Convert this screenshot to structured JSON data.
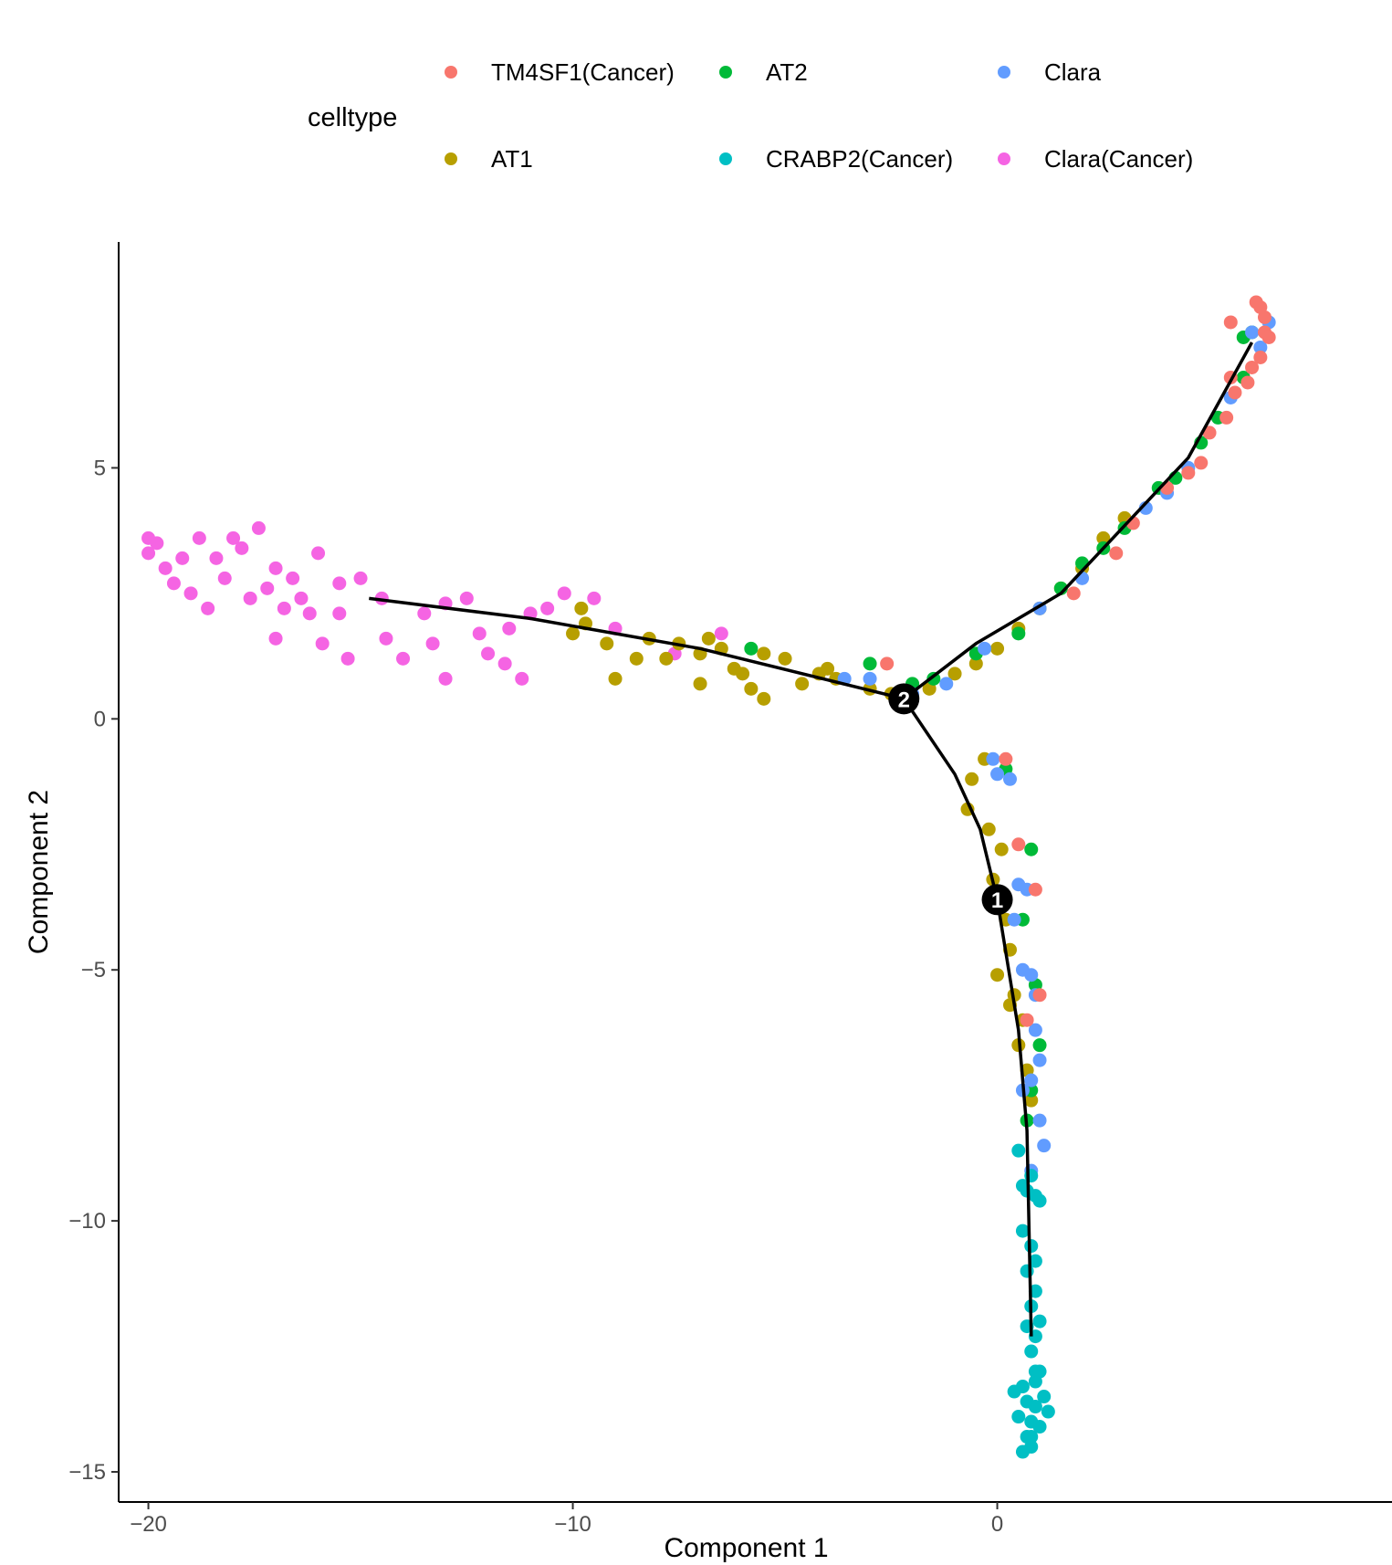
{
  "chart_data": {
    "type": "scatter",
    "xlabel": "Component 1",
    "ylabel": "Component 2",
    "xlim": [
      -20.7,
      9.3
    ],
    "ylim": [
      -15.6,
      9.5
    ],
    "xticks": [
      -20,
      -10,
      0
    ],
    "yticks": [
      5,
      0,
      -5,
      -10,
      -15
    ],
    "xtick_labels": [
      "−20",
      "−10",
      "0"
    ],
    "ytick_labels": [
      "5",
      "0",
      "−5",
      "−10",
      "−15"
    ],
    "grid": false,
    "legend": {
      "title": "celltype",
      "placement": "top",
      "entries": [
        {
          "name": "TM4SF1(Cancer)",
          "color": "#F8766D"
        },
        {
          "name": "AT2",
          "color": "#00BA38"
        },
        {
          "name": "Clara",
          "color": "#619CFF"
        },
        {
          "name": "AT1",
          "color": "#B79F00"
        },
        {
          "name": "CRABP2(Cancer)",
          "color": "#00BFC4"
        },
        {
          "name": "Clara(Cancer)",
          "color": "#F564E3"
        }
      ]
    },
    "trajectory": {
      "branch_points": [
        {
          "label": "1",
          "x": 0.0,
          "y": -3.6
        },
        {
          "label": "2",
          "x": -2.2,
          "y": 0.4
        }
      ],
      "segments": [
        [
          [
            -14.8,
            2.4
          ],
          [
            -11.0,
            2.0
          ],
          [
            -7.0,
            1.4
          ],
          [
            -2.2,
            0.4
          ]
        ],
        [
          [
            -2.2,
            0.4
          ],
          [
            -1.0,
            -1.1
          ],
          [
            -0.4,
            -2.2
          ],
          [
            0.0,
            -3.6
          ],
          [
            0.5,
            -6.2
          ],
          [
            0.7,
            -8.2
          ],
          [
            0.8,
            -12.3
          ]
        ],
        [
          [
            -2.2,
            0.4
          ],
          [
            -0.5,
            1.5
          ],
          [
            1.5,
            2.5
          ],
          [
            3.5,
            4.3
          ],
          [
            4.5,
            5.2
          ],
          [
            6.0,
            7.5
          ]
        ]
      ]
    },
    "series": [
      {
        "name": "Clara(Cancer)",
        "color": "#F564E3",
        "points": [
          [
            -20.0,
            3.6
          ],
          [
            -20.0,
            3.3
          ],
          [
            -19.8,
            3.5
          ],
          [
            -19.6,
            3.0
          ],
          [
            -19.4,
            2.7
          ],
          [
            -19.2,
            3.2
          ],
          [
            -19.0,
            2.5
          ],
          [
            -18.8,
            3.6
          ],
          [
            -18.6,
            2.2
          ],
          [
            -18.4,
            3.2
          ],
          [
            -18.2,
            2.8
          ],
          [
            -18.0,
            3.6
          ],
          [
            -17.8,
            3.4
          ],
          [
            -17.6,
            2.4
          ],
          [
            -17.4,
            3.8
          ],
          [
            -17.2,
            2.6
          ],
          [
            -17.0,
            3.0
          ],
          [
            -16.8,
            2.2
          ],
          [
            -16.6,
            2.8
          ],
          [
            -16.4,
            2.4
          ],
          [
            -16.2,
            2.1
          ],
          [
            -17.0,
            1.6
          ],
          [
            -16.0,
            3.3
          ],
          [
            -15.5,
            2.7
          ],
          [
            -15.5,
            2.1
          ],
          [
            -15.0,
            2.8
          ],
          [
            -14.5,
            2.4
          ],
          [
            -14.4,
            1.6
          ],
          [
            -14.0,
            1.2
          ],
          [
            -13.5,
            2.1
          ],
          [
            -13.3,
            1.5
          ],
          [
            -13.0,
            2.3
          ],
          [
            -13.0,
            0.8
          ],
          [
            -12.5,
            2.4
          ],
          [
            -12.2,
            1.7
          ],
          [
            -12.0,
            1.3
          ],
          [
            -11.6,
            1.1
          ],
          [
            -11.0,
            2.1
          ],
          [
            -11.2,
            0.8
          ],
          [
            -10.6,
            2.2
          ],
          [
            -10.2,
            2.5
          ],
          [
            -9.5,
            2.4
          ],
          [
            -9.0,
            1.8
          ],
          [
            -7.6,
            1.3
          ],
          [
            -6.5,
            1.7
          ],
          [
            -15.9,
            1.5
          ],
          [
            -15.3,
            1.2
          ],
          [
            -11.5,
            1.8
          ]
        ]
      },
      {
        "name": "AT1",
        "color": "#B79F00",
        "points": [
          [
            -10.0,
            1.7
          ],
          [
            -9.8,
            2.2
          ],
          [
            -9.7,
            1.9
          ],
          [
            -9.2,
            1.5
          ],
          [
            -9.0,
            0.8
          ],
          [
            -8.5,
            1.2
          ],
          [
            -8.2,
            1.6
          ],
          [
            -7.8,
            1.2
          ],
          [
            -7.5,
            1.5
          ],
          [
            -7.0,
            1.3
          ],
          [
            -6.8,
            1.6
          ],
          [
            -6.5,
            1.4
          ],
          [
            -6.2,
            1.0
          ],
          [
            -6.0,
            0.9
          ],
          [
            -5.8,
            0.6
          ],
          [
            -5.5,
            1.3
          ],
          [
            -5.0,
            1.2
          ],
          [
            -4.6,
            0.7
          ],
          [
            -4.2,
            0.9
          ],
          [
            -4.0,
            1.0
          ],
          [
            -3.8,
            0.8
          ],
          [
            -3.0,
            0.6
          ],
          [
            -2.5,
            0.5
          ],
          [
            -1.6,
            0.6
          ],
          [
            -1.0,
            0.9
          ],
          [
            -0.5,
            1.1
          ],
          [
            0.0,
            1.4
          ],
          [
            0.5,
            1.8
          ],
          [
            1.0,
            2.2
          ],
          [
            1.5,
            2.6
          ],
          [
            2.0,
            3.0
          ],
          [
            2.5,
            3.6
          ],
          [
            3.0,
            4.0
          ],
          [
            -0.3,
            -0.8
          ],
          [
            -0.6,
            -1.2
          ],
          [
            -0.7,
            -1.8
          ],
          [
            -0.2,
            -2.2
          ],
          [
            0.1,
            -2.6
          ],
          [
            -0.1,
            -3.2
          ],
          [
            0.2,
            -4.0
          ],
          [
            0.3,
            -4.6
          ],
          [
            0.0,
            -5.1
          ],
          [
            0.4,
            -5.5
          ],
          [
            0.6,
            -6.0
          ],
          [
            0.5,
            -6.5
          ],
          [
            0.7,
            -7.0
          ],
          [
            0.8,
            -7.6
          ],
          [
            0.3,
            -5.7
          ],
          [
            -7.0,
            0.7
          ],
          [
            -5.5,
            0.4
          ]
        ]
      },
      {
        "name": "AT2",
        "color": "#00BA38",
        "points": [
          [
            -5.8,
            1.4
          ],
          [
            -3.0,
            1.1
          ],
          [
            -2.0,
            0.7
          ],
          [
            -1.5,
            0.8
          ],
          [
            -0.5,
            1.3
          ],
          [
            0.5,
            1.7
          ],
          [
            1.5,
            2.6
          ],
          [
            2.0,
            3.1
          ],
          [
            2.5,
            3.4
          ],
          [
            3.0,
            3.8
          ],
          [
            3.8,
            4.6
          ],
          [
            4.2,
            4.8
          ],
          [
            4.8,
            5.5
          ],
          [
            5.2,
            6.0
          ],
          [
            5.8,
            6.8
          ],
          [
            6.0,
            7.7
          ],
          [
            5.8,
            7.6
          ],
          [
            0.2,
            -1.0
          ],
          [
            0.8,
            -2.6
          ],
          [
            0.6,
            -4.0
          ],
          [
            0.9,
            -5.3
          ],
          [
            1.0,
            -6.5
          ],
          [
            0.8,
            -7.4
          ],
          [
            0.7,
            -8.0
          ]
        ]
      },
      {
        "name": "Clara",
        "color": "#619CFF",
        "points": [
          [
            -3.6,
            0.8
          ],
          [
            -3.0,
            0.8
          ],
          [
            -2.0,
            0.5
          ],
          [
            -1.2,
            0.7
          ],
          [
            -0.3,
            1.4
          ],
          [
            1.0,
            2.2
          ],
          [
            2.0,
            2.8
          ],
          [
            3.5,
            4.2
          ],
          [
            4.0,
            4.5
          ],
          [
            4.5,
            5.0
          ],
          [
            5.5,
            6.4
          ],
          [
            6.0,
            7.7
          ],
          [
            6.2,
            7.4
          ],
          [
            6.4,
            7.9
          ],
          [
            -0.1,
            -0.8
          ],
          [
            0.0,
            -1.1
          ],
          [
            0.3,
            -1.2
          ],
          [
            0.5,
            -3.3
          ],
          [
            0.7,
            -3.4
          ],
          [
            0.4,
            -4.0
          ],
          [
            0.6,
            -5.0
          ],
          [
            0.8,
            -5.1
          ],
          [
            0.9,
            -5.5
          ],
          [
            0.9,
            -6.2
          ],
          [
            1.0,
            -6.8
          ],
          [
            0.8,
            -7.2
          ],
          [
            0.6,
            -7.4
          ],
          [
            1.0,
            -8.0
          ],
          [
            1.1,
            -8.5
          ],
          [
            0.8,
            -9.0
          ]
        ]
      },
      {
        "name": "TM4SF1(Cancer)",
        "color": "#F8766D",
        "points": [
          [
            -2.6,
            1.1
          ],
          [
            1.8,
            2.5
          ],
          [
            2.8,
            3.3
          ],
          [
            3.2,
            3.9
          ],
          [
            4.0,
            4.6
          ],
          [
            4.5,
            4.9
          ],
          [
            4.8,
            5.1
          ],
          [
            5.0,
            5.7
          ],
          [
            5.4,
            6.0
          ],
          [
            5.6,
            6.5
          ],
          [
            5.9,
            6.7
          ],
          [
            6.2,
            7.2
          ],
          [
            6.3,
            7.7
          ],
          [
            6.4,
            7.6
          ],
          [
            6.1,
            8.3
          ],
          [
            6.3,
            8.0
          ],
          [
            6.2,
            8.2
          ],
          [
            5.5,
            7.9
          ],
          [
            6.0,
            7.0
          ],
          [
            5.5,
            6.8
          ],
          [
            0.2,
            -0.8
          ],
          [
            0.5,
            -2.5
          ],
          [
            0.9,
            -3.4
          ],
          [
            0.7,
            -6.0
          ],
          [
            1.0,
            -5.5
          ]
        ]
      },
      {
        "name": "CRABP2(Cancer)",
        "color": "#00BFC4",
        "points": [
          [
            0.5,
            -8.6
          ],
          [
            0.7,
            -9.4
          ],
          [
            0.9,
            -9.5
          ],
          [
            1.0,
            -9.6
          ],
          [
            0.6,
            -10.2
          ],
          [
            0.8,
            -10.5
          ],
          [
            0.7,
            -11.0
          ],
          [
            0.9,
            -11.4
          ],
          [
            0.8,
            -11.7
          ],
          [
            1.0,
            -12.0
          ],
          [
            0.9,
            -12.3
          ],
          [
            0.8,
            -12.6
          ],
          [
            0.9,
            -13.0
          ],
          [
            0.6,
            -13.3
          ],
          [
            0.7,
            -13.6
          ],
          [
            0.9,
            -13.7
          ],
          [
            0.8,
            -14.0
          ],
          [
            1.0,
            -14.1
          ],
          [
            0.7,
            -14.3
          ],
          [
            0.8,
            -14.5
          ],
          [
            0.5,
            -13.9
          ],
          [
            1.1,
            -13.5
          ],
          [
            0.6,
            -14.6
          ],
          [
            0.9,
            -13.2
          ],
          [
            1.2,
            -13.8
          ],
          [
            0.4,
            -13.4
          ],
          [
            0.8,
            -9.1
          ],
          [
            0.6,
            -9.3
          ],
          [
            0.9,
            -10.8
          ],
          [
            0.7,
            -12.1
          ],
          [
            1.0,
            -13.0
          ],
          [
            0.8,
            -14.3
          ]
        ]
      }
    ]
  }
}
